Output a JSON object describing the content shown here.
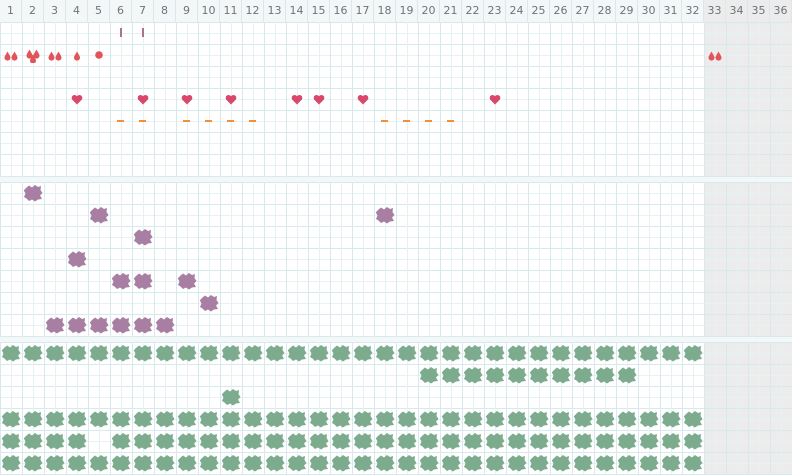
{
  "calendar": {
    "days": [
      "1",
      "2",
      "3",
      "4",
      "5",
      "6",
      "7",
      "8",
      "9",
      "10",
      "11",
      "12",
      "13",
      "14",
      "15",
      "16",
      "17",
      "18",
      "19",
      "20",
      "21",
      "22",
      "23",
      "24",
      "25",
      "26",
      "27",
      "28",
      "29",
      "30",
      "31",
      "32",
      "33",
      "34",
      "35",
      "36"
    ],
    "closed_from_day": 33,
    "colors": {
      "drop": "#e0545a",
      "heart": "#d9476a",
      "tick": "#b0708c",
      "dash": "#f0903a",
      "purple_mark": "#a87ea3",
      "green_mark": "#7dab8e",
      "closed_bg": "#ececec",
      "grid": "#d6eaee"
    }
  },
  "panels": [
    {
      "rows": [
        {
          "icon": "tick-icon",
          "days": [
            6,
            7
          ]
        },
        {
          "icon": "drops-icon",
          "days": [
            1,
            2,
            3,
            4,
            5,
            33
          ],
          "variants": [
            "pair",
            "triple",
            "pair",
            "single",
            "circle",
            "pair"
          ]
        },
        {
          "icon": "blank",
          "days": []
        },
        {
          "icon": "heart-icon",
          "days": [
            4,
            7,
            9,
            11,
            14,
            15,
            17,
            23
          ]
        },
        {
          "icon": "dash-icon",
          "days": [
            6,
            7,
            9,
            10,
            11,
            12,
            18,
            19,
            20,
            21
          ]
        },
        {
          "icon": "blank",
          "days": []
        },
        {
          "icon": "blank",
          "days": []
        }
      ]
    },
    {
      "rows": [
        {
          "icon": "purple-scribble-icon",
          "days": [
            2
          ]
        },
        {
          "icon": "purple-scribble-icon",
          "days": [
            5,
            18
          ]
        },
        {
          "icon": "purple-scribble-icon",
          "days": [
            7
          ]
        },
        {
          "icon": "purple-scribble-icon",
          "days": [
            4
          ]
        },
        {
          "icon": "purple-scribble-icon",
          "days": [
            6,
            7,
            9
          ]
        },
        {
          "icon": "purple-scribble-icon",
          "days": [
            10
          ]
        },
        {
          "icon": "purple-scribble-icon",
          "days": [
            3,
            4,
            5,
            6,
            7,
            8
          ]
        }
      ]
    },
    {
      "rows": [
        {
          "icon": "green-scribble-icon",
          "days": [
            1,
            2,
            3,
            4,
            5,
            6,
            7,
            8,
            9,
            10,
            11,
            12,
            13,
            14,
            15,
            16,
            17,
            18,
            19,
            20,
            21,
            22,
            23,
            24,
            25,
            26,
            27,
            28,
            29,
            30,
            31,
            32
          ]
        },
        {
          "icon": "green-scribble-icon",
          "days": [
            20,
            21,
            22,
            23,
            24,
            25,
            26,
            27,
            28,
            29
          ]
        },
        {
          "icon": "green-scribble-icon",
          "days": [
            11
          ]
        },
        {
          "icon": "green-scribble-icon",
          "days": [
            1,
            2,
            3,
            4,
            5,
            6,
            7,
            8,
            9,
            10,
            11,
            12,
            13,
            14,
            15,
            16,
            17,
            18,
            19,
            20,
            21,
            22,
            23,
            24,
            25,
            26,
            27,
            28,
            29,
            30,
            31,
            32
          ]
        },
        {
          "icon": "green-scribble-icon",
          "days": [
            1,
            2,
            3,
            4,
            6,
            7,
            8,
            9,
            10,
            11,
            12,
            13,
            14,
            15,
            16,
            17,
            18,
            19,
            20,
            21,
            22,
            23,
            24,
            25,
            26,
            27,
            28,
            29,
            30,
            31,
            32
          ]
        },
        {
          "icon": "green-scribble-icon",
          "days": [
            1,
            2,
            3,
            4,
            5,
            6,
            7,
            8,
            9,
            10,
            11,
            12,
            13,
            14,
            15,
            16,
            17,
            18,
            19,
            20,
            21,
            22,
            23,
            24,
            25,
            26,
            27,
            28,
            29,
            30,
            31,
            32
          ]
        }
      ]
    }
  ]
}
